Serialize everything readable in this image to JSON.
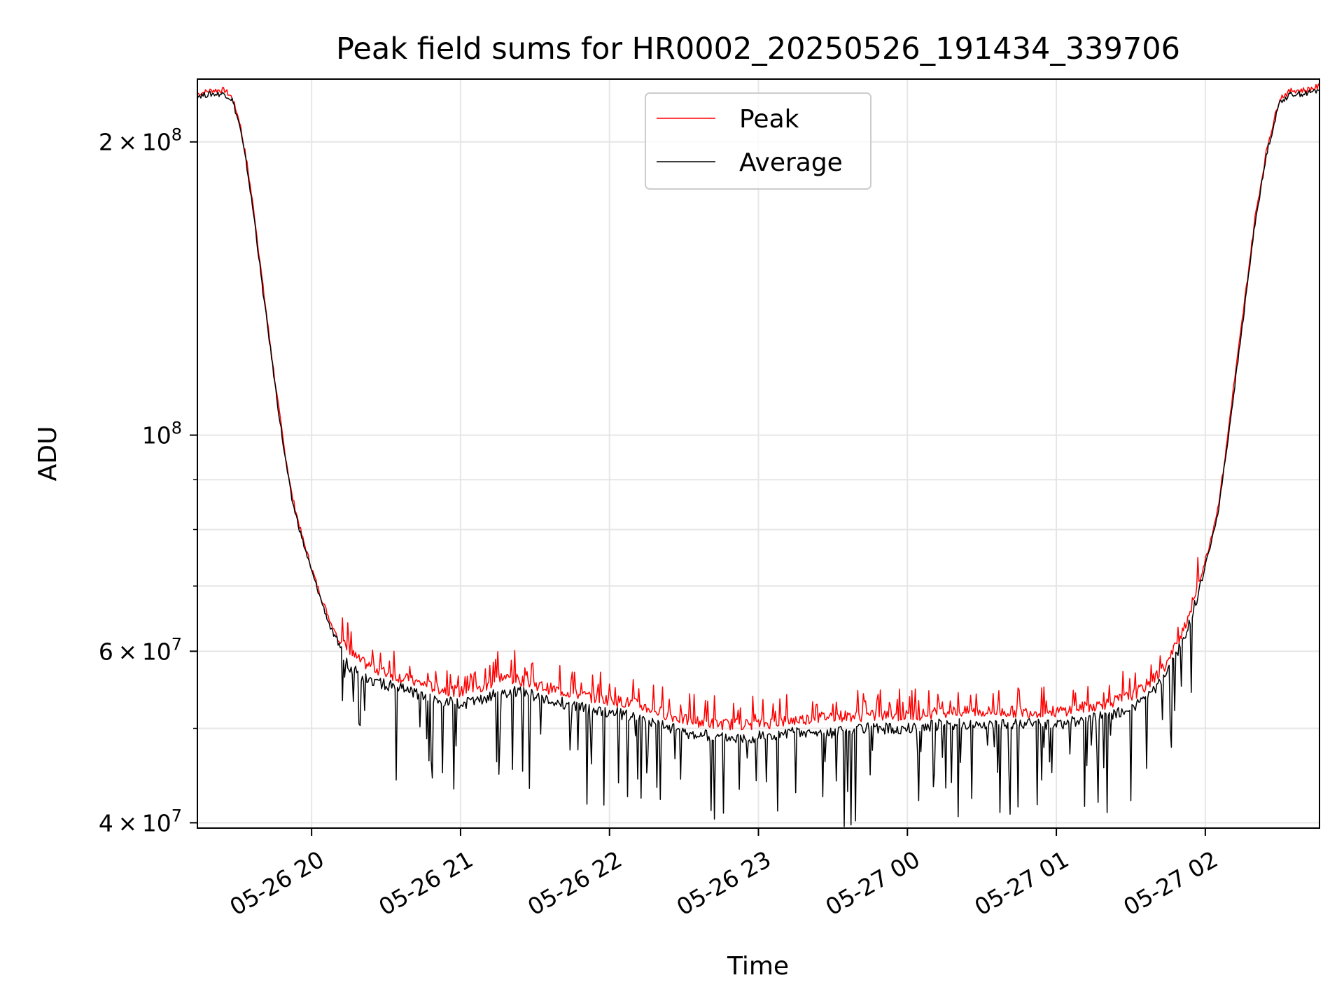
{
  "chart_data": {
    "type": "line",
    "title": "Peak field sums for HR0002_20250526_191434_339706",
    "xlabel": "Time",
    "ylabel": "ADU",
    "y_scale": "log",
    "ylim": [
      39500000,
      232000000
    ],
    "xlim": [
      "2025-05-26 19:14",
      "2025-05-27 02:46"
    ],
    "x_ticks": [
      {
        "value": "2025-05-26 20:00",
        "label": "05-26 20"
      },
      {
        "value": "2025-05-26 21:00",
        "label": "05-26 21"
      },
      {
        "value": "2025-05-26 22:00",
        "label": "05-26 22"
      },
      {
        "value": "2025-05-26 23:00",
        "label": "05-26 23"
      },
      {
        "value": "2025-05-27 00:00",
        "label": "05-27 00"
      },
      {
        "value": "2025-05-27 01:00",
        "label": "05-27 01"
      },
      {
        "value": "2025-05-27 02:00",
        "label": "05-27 02"
      }
    ],
    "y_major_ticks": [
      {
        "value": 40000000,
        "base": "4",
        "exp": "7"
      },
      {
        "value": 60000000,
        "base": "6",
        "exp": "7"
      },
      {
        "value": 100000000,
        "base": "",
        "exp": "8"
      },
      {
        "value": 200000000,
        "base": "2",
        "exp": "8"
      }
    ],
    "y_minor_ticks": [
      50000000,
      70000000,
      80000000,
      90000000
    ],
    "grid": true,
    "legend": {
      "placement": "upper-center",
      "entries": [
        "Peak",
        "Average"
      ]
    },
    "colors": {
      "Peak": "#ff0000",
      "Average": "#000000"
    },
    "series": [
      {
        "name": "Peak",
        "x": [
          "2025-05-26 19:14",
          "2025-05-26 19:20",
          "2025-05-26 19:25",
          "2025-05-26 19:28",
          "2025-05-26 19:31",
          "2025-05-26 19:34",
          "2025-05-26 19:37",
          "2025-05-26 19:40",
          "2025-05-26 19:43",
          "2025-05-26 19:46",
          "2025-05-26 19:49",
          "2025-05-26 19:52",
          "2025-05-26 19:56",
          "2025-05-26 20:00",
          "2025-05-26 20:04",
          "2025-05-26 20:08",
          "2025-05-26 20:12",
          "2025-05-26 20:15",
          "2025-05-26 20:20",
          "2025-05-26 20:30",
          "2025-05-26 20:40",
          "2025-05-26 20:50",
          "2025-05-26 21:00",
          "2025-05-26 21:10",
          "2025-05-26 21:15",
          "2025-05-26 21:25",
          "2025-05-26 21:35",
          "2025-05-26 21:50",
          "2025-05-26 22:00",
          "2025-05-26 22:10",
          "2025-05-26 22:20",
          "2025-05-26 22:30",
          "2025-05-26 22:45",
          "2025-05-26 23:00",
          "2025-05-26 23:15",
          "2025-05-26 23:30",
          "2025-05-26 23:45",
          "2025-05-27 00:00",
          "2025-05-27 00:15",
          "2025-05-27 00:30",
          "2025-05-27 00:45",
          "2025-05-27 01:00",
          "2025-05-27 01:10",
          "2025-05-27 01:20",
          "2025-05-27 01:30",
          "2025-05-27 01:35",
          "2025-05-27 01:40",
          "2025-05-27 01:45",
          "2025-05-27 01:49",
          "2025-05-27 01:53",
          "2025-05-27 01:57",
          "2025-05-27 02:01",
          "2025-05-27 02:05",
          "2025-05-27 02:08",
          "2025-05-27 02:11",
          "2025-05-27 02:14",
          "2025-05-27 02:17",
          "2025-05-27 02:20",
          "2025-05-27 02:25",
          "2025-05-27 02:30",
          "2025-05-27 02:35",
          "2025-05-27 02:40",
          "2025-05-27 02:46"
        ],
        "values": [
          224000000,
          226000000,
          226000000,
          222000000,
          210000000,
          190000000,
          168000000,
          145000000,
          126000000,
          110000000,
          97000000,
          87000000,
          79000000,
          73000000,
          68000000,
          64000000,
          61500000,
          60000000,
          58500000,
          57000000,
          56000000,
          55000000,
          54500000,
          55000000,
          56500000,
          56000000,
          55000000,
          54000000,
          53500000,
          53000000,
          52000000,
          51000000,
          50500000,
          50500000,
          51000000,
          51500000,
          51500000,
          51500000,
          52000000,
          52000000,
          52000000,
          52000000,
          52500000,
          53000000,
          54000000,
          55000000,
          56500000,
          58500000,
          61500000,
          65000000,
          70000000,
          76000000,
          84000000,
          95000000,
          110000000,
          126000000,
          145000000,
          167000000,
          198000000,
          222000000,
          226000000,
          226000000,
          228000000
        ]
      },
      {
        "name": "Average",
        "x": [
          "2025-05-26 19:14",
          "2025-05-26 19:20",
          "2025-05-26 19:25",
          "2025-05-26 19:28",
          "2025-05-26 19:31",
          "2025-05-26 19:34",
          "2025-05-26 19:37",
          "2025-05-26 19:40",
          "2025-05-26 19:43",
          "2025-05-26 19:46",
          "2025-05-26 19:49",
          "2025-05-26 19:52",
          "2025-05-26 19:56",
          "2025-05-26 20:00",
          "2025-05-26 20:04",
          "2025-05-26 20:08",
          "2025-05-26 20:12",
          "2025-05-26 20:15",
          "2025-05-26 20:20",
          "2025-05-26 20:30",
          "2025-05-26 20:40",
          "2025-05-26 20:50",
          "2025-05-26 21:00",
          "2025-05-26 21:10",
          "2025-05-26 21:15",
          "2025-05-26 21:25",
          "2025-05-26 21:35",
          "2025-05-26 21:50",
          "2025-05-26 22:00",
          "2025-05-26 22:10",
          "2025-05-26 22:20",
          "2025-05-26 22:30",
          "2025-05-26 22:45",
          "2025-05-26 23:00",
          "2025-05-26 23:15",
          "2025-05-26 23:30",
          "2025-05-26 23:45",
          "2025-05-27 00:00",
          "2025-05-27 00:15",
          "2025-05-27 00:30",
          "2025-05-27 00:45",
          "2025-05-27 01:00",
          "2025-05-27 01:10",
          "2025-05-27 01:20",
          "2025-05-27 01:30",
          "2025-05-27 01:35",
          "2025-05-27 01:40",
          "2025-05-27 01:45",
          "2025-05-27 01:49",
          "2025-05-27 01:53",
          "2025-05-27 01:57",
          "2025-05-27 02:01",
          "2025-05-27 02:05",
          "2025-05-27 02:08",
          "2025-05-27 02:11",
          "2025-05-27 02:14",
          "2025-05-27 02:17",
          "2025-05-27 02:20",
          "2025-05-27 02:25",
          "2025-05-27 02:30",
          "2025-05-27 02:35",
          "2025-05-27 02:40",
          "2025-05-27 02:46"
        ],
        "values": [
          223000000,
          224000000,
          224000000,
          221000000,
          208000000,
          188000000,
          166000000,
          143000000,
          125000000,
          109000000,
          96000000,
          86000000,
          78500000,
          72500000,
          67500000,
          63000000,
          60000000,
          58000000,
          56500000,
          55500000,
          54500000,
          53500000,
          53000000,
          53500000,
          54500000,
          54500000,
          53500000,
          52500000,
          52000000,
          51500000,
          50500000,
          49500000,
          49000000,
          49000000,
          49500000,
          49500000,
          50000000,
          50000000,
          50500000,
          50500000,
          50500000,
          50500000,
          51000000,
          51500000,
          52500000,
          53500000,
          55000000,
          57000000,
          60000000,
          63500000,
          68500000,
          75000000,
          83000000,
          94000000,
          108000000,
          124000000,
          143000000,
          165000000,
          196000000,
          220000000,
          224000000,
          224000000,
          226000000
        ]
      }
    ]
  }
}
